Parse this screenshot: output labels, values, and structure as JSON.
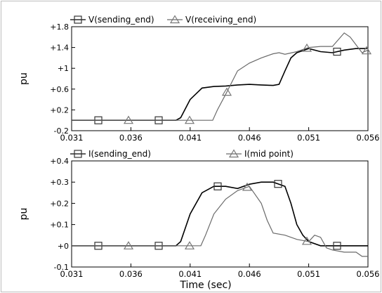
{
  "chart_data": [
    {
      "type": "line",
      "ylabel": "pu",
      "xlim": [
        0.031,
        0.056
      ],
      "ylim": [
        -0.2,
        1.8
      ],
      "yticks": [
        1.8,
        1.4,
        1,
        0.6,
        0.2,
        -0.2
      ],
      "ytick_labels": [
        "+1.8",
        "+1.4",
        "+1",
        "+0.6",
        "+0.2",
        "-0.2"
      ],
      "xticks": [
        0.031,
        0.036,
        0.041,
        0.046,
        0.051,
        0.056
      ],
      "xtick_labels": [
        "0.031",
        "0.036",
        "0.041",
        "0.046",
        "0.051",
        "0.056"
      ],
      "grid": false,
      "legend_position": "top",
      "series": [
        {
          "name": "V(sending_end)",
          "marker": "square",
          "x": [
            0.031,
            0.0398,
            0.0402,
            0.041,
            0.042,
            0.043,
            0.044,
            0.045,
            0.046,
            0.047,
            0.048,
            0.0485,
            0.049,
            0.0495,
            0.05,
            0.051,
            0.052,
            0.053,
            0.054,
            0.055,
            0.056
          ],
          "y": [
            0,
            0,
            0.05,
            0.4,
            0.62,
            0.65,
            0.66,
            0.68,
            0.69,
            0.68,
            0.67,
            0.69,
            0.95,
            1.2,
            1.3,
            1.38,
            1.32,
            1.3,
            1.35,
            1.38,
            1.38
          ]
        },
        {
          "name": "V(receiving_end)",
          "marker": "triangle",
          "x": [
            0.031,
            0.0429,
            0.0433,
            0.044,
            0.045,
            0.046,
            0.047,
            0.048,
            0.0485,
            0.049,
            0.05,
            0.051,
            0.052,
            0.053,
            0.0535,
            0.054,
            0.0545,
            0.055,
            0.0555,
            0.056
          ],
          "y": [
            0,
            0,
            0.2,
            0.5,
            0.95,
            1.1,
            1.2,
            1.28,
            1.3,
            1.27,
            1.32,
            1.4,
            1.42,
            1.42,
            1.55,
            1.68,
            1.6,
            1.45,
            1.3,
            1.35
          ]
        }
      ]
    },
    {
      "type": "line",
      "xlabel": "Time (sec)",
      "ylabel": "pu",
      "xlim": [
        0.031,
        0.056
      ],
      "ylim": [
        -0.1,
        0.4
      ],
      "yticks": [
        0.4,
        0.3,
        0.2,
        0.1,
        0,
        -0.1
      ],
      "ytick_labels": [
        "+0.4",
        "+0.3",
        "+0.2",
        "+0.1",
        "+0",
        "-0.1"
      ],
      "xticks": [
        0.031,
        0.036,
        0.041,
        0.046,
        0.051,
        0.056
      ],
      "xtick_labels": [
        "0.031",
        "0.036",
        "0.041",
        "0.046",
        "0.051",
        "0.056"
      ],
      "grid": false,
      "legend_position": "top",
      "series": [
        {
          "name": "I(sending_end)",
          "marker": "square",
          "x": [
            0.031,
            0.0398,
            0.0402,
            0.041,
            0.042,
            0.043,
            0.044,
            0.045,
            0.046,
            0.047,
            0.048,
            0.049,
            0.0495,
            0.05,
            0.0505,
            0.051,
            0.052,
            0.053,
            0.054,
            0.055,
            0.056
          ],
          "y": [
            0,
            0,
            0.02,
            0.15,
            0.25,
            0.28,
            0.28,
            0.27,
            0.29,
            0.3,
            0.3,
            0.28,
            0.2,
            0.1,
            0.05,
            0.02,
            0,
            0,
            0,
            0,
            0
          ]
        },
        {
          "name": "I(mid point)",
          "marker": "triangle",
          "x": [
            0.031,
            0.0419,
            0.0423,
            0.043,
            0.044,
            0.045,
            0.046,
            0.047,
            0.0475,
            0.048,
            0.049,
            0.05,
            0.051,
            0.0515,
            0.052,
            0.0525,
            0.053,
            0.054,
            0.055,
            0.0555,
            0.056
          ],
          "y": [
            0,
            0,
            0.05,
            0.15,
            0.22,
            0.26,
            0.28,
            0.2,
            0.12,
            0.06,
            0.05,
            0.03,
            0.02,
            0.05,
            0.04,
            -0.01,
            -0.02,
            -0.03,
            -0.03,
            -0.05,
            -0.05
          ]
        }
      ]
    }
  ]
}
